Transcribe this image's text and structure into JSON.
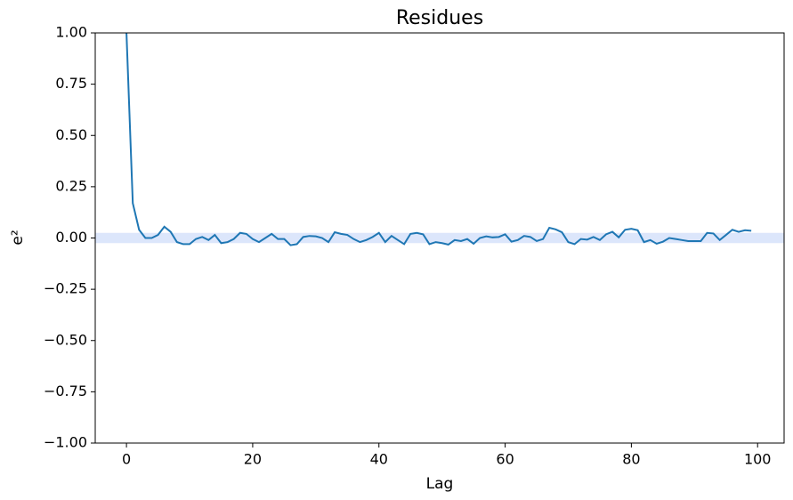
{
  "chart_data": {
    "type": "line",
    "title": "Residues",
    "xlabel": "Lag",
    "ylabel": "e²",
    "x": [
      0,
      1,
      2,
      3,
      4,
      5,
      6,
      7,
      8,
      9,
      10,
      11,
      12,
      13,
      14,
      15,
      16,
      17,
      18,
      19,
      20,
      21,
      22,
      23,
      24,
      25,
      26,
      27,
      28,
      29,
      30,
      31,
      32,
      33,
      34,
      35,
      36,
      37,
      38,
      39,
      40,
      41,
      42,
      43,
      44,
      45,
      46,
      47,
      48,
      49,
      50,
      51,
      52,
      53,
      54,
      55,
      56,
      57,
      58,
      59,
      60,
      61,
      62,
      63,
      64,
      65,
      66,
      67,
      68,
      69,
      70,
      71,
      72,
      73,
      74,
      75,
      76,
      77,
      78,
      79,
      80,
      81,
      82,
      83,
      84,
      85,
      86,
      87,
      88,
      89,
      90,
      91,
      92,
      93,
      94,
      95,
      96,
      97,
      98,
      99
    ],
    "series": [
      {
        "color": "#1f77b4",
        "values": [
          1,
          0.17,
          0.04,
          0.0,
          0.0,
          0.015,
          0.055,
          0.03,
          -0.02,
          -0.03,
          -0.03,
          -0.005,
          0.005,
          -0.01,
          0.015,
          -0.025,
          -0.02,
          -0.005,
          0.025,
          0.02,
          -0.005,
          -0.02,
          0.0,
          0.02,
          -0.005,
          -0.005,
          -0.035,
          -0.03,
          0.005,
          0.01,
          0.008,
          0.0,
          -0.02,
          0.028,
          0.02,
          0.015,
          -0.005,
          -0.02,
          -0.01,
          0.005,
          0.025,
          -0.02,
          0.01,
          -0.01,
          -0.03,
          0.02,
          0.025,
          0.018,
          -0.03,
          -0.02,
          -0.025,
          -0.032,
          -0.01,
          -0.015,
          -0.005,
          -0.028,
          0.0,
          0.008,
          0.003,
          0.005,
          0.018,
          -0.018,
          -0.01,
          0.01,
          0.005,
          -0.015,
          -0.005,
          0.05,
          0.042,
          0.028,
          -0.02,
          -0.03,
          -0.005,
          -0.008,
          0.005,
          -0.01,
          0.018,
          0.03,
          0.003,
          0.04,
          0.045,
          0.038,
          -0.02,
          -0.01,
          -0.028,
          -0.018,
          0.0,
          -0.005,
          -0.01,
          -0.015,
          -0.015,
          -0.015,
          0.025,
          0.022,
          -0.01,
          0.015,
          0.04,
          0.03,
          0.038,
          0.035
        ]
      }
    ],
    "confidence_band": [
      -0.025,
      0.025
    ],
    "band_color": "#dce6fb",
    "xlim": [
      -4.95,
      104.2
    ],
    "xticks": [
      0,
      20,
      40,
      60,
      80,
      100
    ],
    "ylim": [
      -1,
      1
    ],
    "yticks": [
      {
        "value": -1,
        "label": "−1.00"
      },
      {
        "value": -0.75,
        "label": "−0.75"
      },
      {
        "value": -0.5,
        "label": "−0.50"
      },
      {
        "value": -0.25,
        "label": "−0.25"
      },
      {
        "value": 0,
        "label": "0.00"
      },
      {
        "value": 0.25,
        "label": "0.25"
      },
      {
        "value": 0.5,
        "label": "0.50"
      },
      {
        "value": 0.75,
        "label": "0.75"
      },
      {
        "value": 1,
        "label": "1.00"
      }
    ]
  }
}
